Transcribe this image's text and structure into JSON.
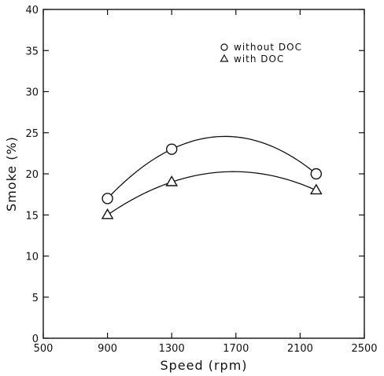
{
  "chart_data": {
    "type": "scatter",
    "xlabel": "Speed (rpm)",
    "ylabel": "Smoke (%)",
    "xlim": [
      500,
      2500
    ],
    "ylim": [
      0,
      40
    ],
    "xticks": [
      500,
      900,
      1300,
      1700,
      2100,
      2500
    ],
    "yticks": [
      0,
      5,
      10,
      15,
      20,
      25,
      30,
      35,
      40
    ],
    "grid": false,
    "legend_position": "top-right",
    "series": [
      {
        "name": "without DOC",
        "marker": "circle",
        "x": [
          900,
          1300,
          2200
        ],
        "y": [
          17,
          23,
          20
        ],
        "fit": "smooth-curve"
      },
      {
        "name": "with DOC",
        "marker": "triangle",
        "x": [
          900,
          1300,
          2200
        ],
        "y": [
          15,
          19,
          18
        ],
        "fit": "smooth-curve"
      }
    ]
  }
}
